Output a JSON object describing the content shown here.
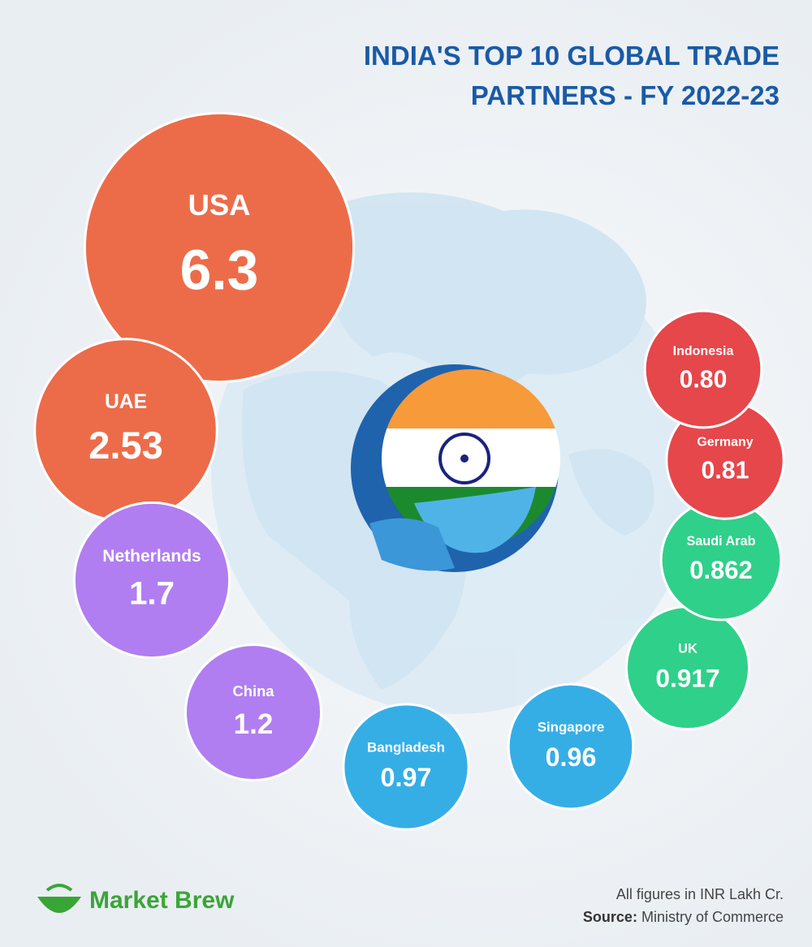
{
  "brand": "Market Brew",
  "chart_data": {
    "type": "bubble",
    "title": "INDIA'S TOP 10 GLOBAL TRADE PARTNERS - FY 2022-23",
    "categories": [
      "USA",
      "UAE",
      "Netherlands",
      "China",
      "Bangladesh",
      "Singapore",
      "UK",
      "Saudi Arab",
      "Germany",
      "Indonesia"
    ],
    "values": [
      6.3,
      2.53,
      1.7,
      1.2,
      0.97,
      0.96,
      0.917,
      0.862,
      0.81,
      0.8
    ],
    "value_labels": [
      "6.3",
      "2.53",
      "1.7",
      "1.2",
      "0.97",
      "0.96",
      "0.917",
      "0.862",
      "0.81",
      "0.80"
    ],
    "colors": [
      "#ec6c4a",
      "#ec6c4a",
      "#b07ef0",
      "#b07ef0",
      "#35aee6",
      "#35aee6",
      "#2fd08a",
      "#2fd08a",
      "#e5474b",
      "#e5474b"
    ],
    "note": "All figures in INR Lakh Cr.",
    "source_label": "Source:",
    "source": "Ministry of Commerce"
  }
}
